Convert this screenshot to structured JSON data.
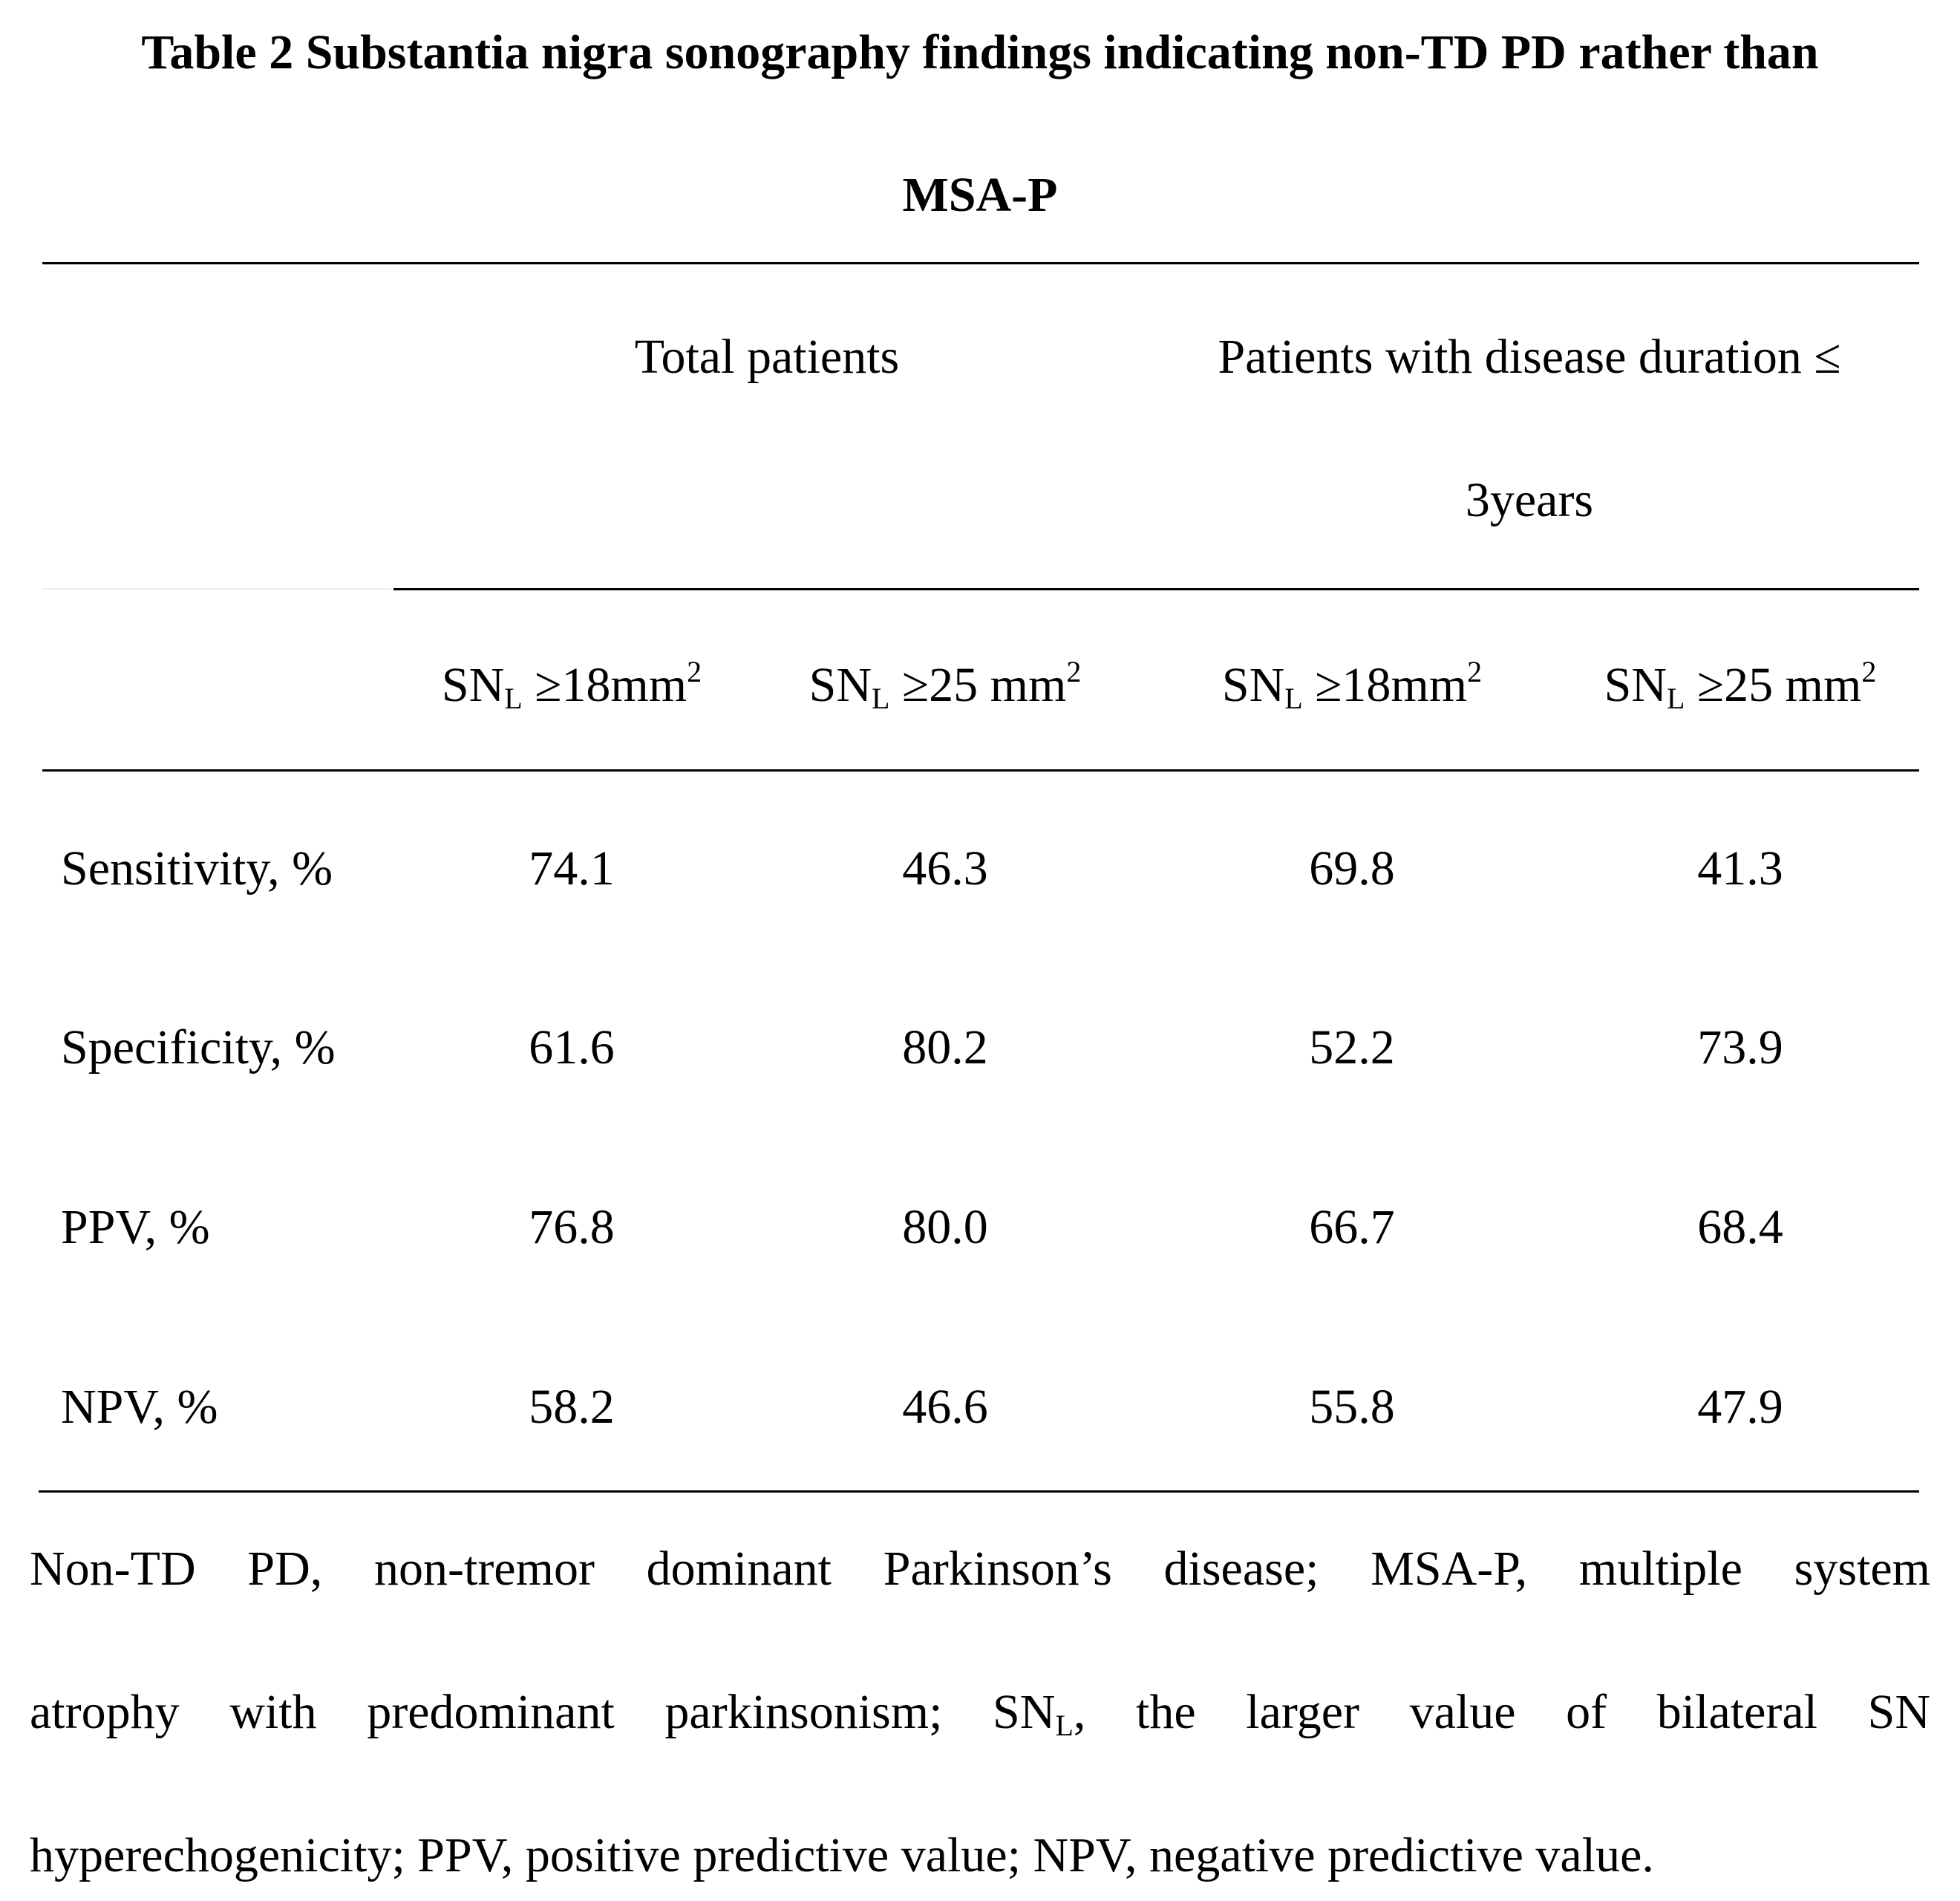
{
  "title": {
    "line1": "Table 2 Substantia nigra sonography findings indicating non-TD PD rather than",
    "line2": "MSA-P"
  },
  "header": {
    "group1": "Total patients",
    "group2_line1": "Patients with disease duration ≤",
    "group2_line2": "3years",
    "columns": [
      {
        "prefix": "SN",
        "sub": "L",
        "body": " ≥18mm",
        "sup": "2"
      },
      {
        "prefix": "SN",
        "sub": "L",
        "body": " ≥25 mm",
        "sup": "2"
      },
      {
        "prefix": "SN",
        "sub": "L",
        "body": " ≥18mm",
        "sup": "2"
      },
      {
        "prefix": "SN",
        "sub": "L",
        "body": " ≥25 mm",
        "sup": "2"
      }
    ]
  },
  "rows": [
    {
      "label": "Sensitivity, %",
      "values": [
        "74.1",
        "46.3",
        "69.8",
        "41.3"
      ]
    },
    {
      "label": "Specificity, %",
      "values": [
        "61.6",
        "80.2",
        "52.2",
        "73.9"
      ]
    },
    {
      "label": "PPV, %",
      "values": [
        "76.8",
        "80.0",
        "66.7",
        "68.4"
      ]
    },
    {
      "label": "NPV, %",
      "values": [
        "58.2",
        "46.6",
        "55.8",
        "47.9"
      ]
    }
  ],
  "footnote": {
    "line1": "Non-TD PD, non-tremor dominant Parkinson’s disease; MSA-P, multiple system",
    "line2_before": "atrophy with predominant parkinsonism; SN",
    "line2_sub": "L",
    "line2_after": ", the larger value of bilateral SN",
    "line3": "hyperechogenicity; PPV, positive predictive value; NPV, negative predictive value."
  }
}
